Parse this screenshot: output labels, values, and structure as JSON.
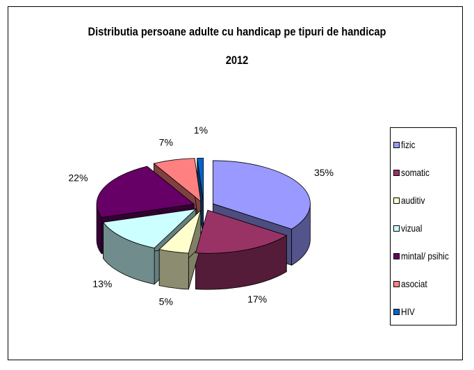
{
  "chart_data": {
    "type": "pie",
    "title": "Distributia persoane adulte cu handicap pe tipuri de handicap",
    "subtitle": "2012",
    "legend_position": "right",
    "categories": [
      "fizic",
      "somatic",
      "auditiv",
      "vizual",
      "mintal/ psihic",
      "asociat",
      "HIV"
    ],
    "values": [
      35,
      17,
      5,
      13,
      22,
      7,
      1
    ],
    "value_labels": [
      "35%",
      "17%",
      "5%",
      "13%",
      "22%",
      "7%",
      "1%"
    ],
    "colors": [
      "#9999ff",
      "#993366",
      "#ffffcc",
      "#ccffff",
      "#660066",
      "#ff8080",
      "#0066cc"
    ]
  }
}
